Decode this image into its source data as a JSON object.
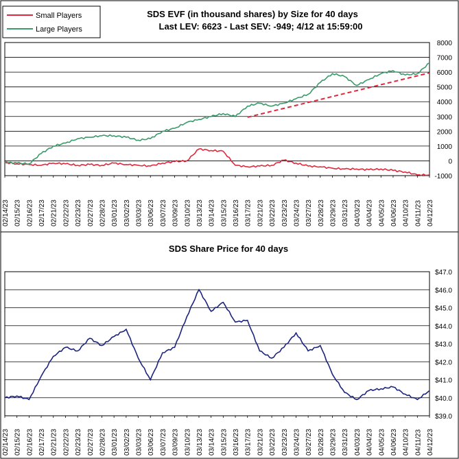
{
  "dates": [
    "02/14/23",
    "02/15/23",
    "02/16/23",
    "02/17/23",
    "02/21/23",
    "02/22/23",
    "02/23/23",
    "02/27/23",
    "02/28/23",
    "03/01/23",
    "03/02/23",
    "03/03/23",
    "03/06/23",
    "03/07/23",
    "03/09/23",
    "03/10/23",
    "03/13/23",
    "03/14/23",
    "03/15/23",
    "03/16/23",
    "03/17/23",
    "03/21/23",
    "03/22/23",
    "03/23/23",
    "03/24/23",
    "03/27/23",
    "03/28/23",
    "03/29/23",
    "03/31/23",
    "04/03/23",
    "04/04/23",
    "04/05/23",
    "04/06/23",
    "04/10/23",
    "04/11/23",
    "04/12/23"
  ],
  "chart_data": [
    {
      "type": "line",
      "title": "SDS EVF (in thousand shares) by Size for 40 days",
      "subtitle": "Last LEV: 6623 - Last SEV: -949; 4/12 at 15:59:00",
      "y_ticks": [
        "8000",
        "7000",
        "6000",
        "5000",
        "4000",
        "3000",
        "2000",
        "1000",
        "0",
        "-1000"
      ],
      "ylim": [
        -1000,
        8000
      ],
      "grid": true,
      "legend": "top-left",
      "series": [
        {
          "name": "Small Players",
          "color": "#e0283c",
          "values": [
            -100,
            -200,
            -250,
            -300,
            -150,
            -200,
            -300,
            -250,
            -300,
            -150,
            -250,
            -300,
            -350,
            -150,
            -50,
            0,
            800,
            700,
            650,
            -300,
            -400,
            -350,
            -300,
            50,
            -150,
            -350,
            -400,
            -500,
            -550,
            -550,
            -600,
            -550,
            -650,
            -750,
            -950,
            -949
          ]
        },
        {
          "name": "Large Players",
          "color": "#3a9a6a",
          "values": [
            -100,
            -150,
            -200,
            500,
            1000,
            1200,
            1500,
            1600,
            1700,
            1700,
            1600,
            1400,
            1500,
            2000,
            2200,
            2600,
            2800,
            3000,
            3200,
            3000,
            3700,
            3900,
            3700,
            3900,
            4200,
            4500,
            5300,
            5900,
            5700,
            5100,
            5500,
            5900,
            6100,
            5800,
            5900,
            6623
          ]
        }
      ],
      "trendline": {
        "color": "#e0283c",
        "x_start": "03/17/23",
        "y_start": 2950,
        "x_end": "04/12/23",
        "y_end": 5950,
        "style": "dashed"
      }
    },
    {
      "type": "line",
      "title": "SDS Share Price for 40 days",
      "y_ticks": [
        "$47.0",
        "$46.0",
        "$45.0",
        "$44.0",
        "$43.0",
        "$42.0",
        "$41.0",
        "$40.0",
        "$39.0"
      ],
      "ylim": [
        39.0,
        47.0
      ],
      "grid": true,
      "series": [
        {
          "color": "#1a237e",
          "values": [
            40.0,
            40.1,
            39.9,
            41.2,
            42.3,
            42.8,
            42.6,
            43.3,
            42.9,
            43.4,
            43.8,
            42.2,
            41.0,
            42.5,
            42.8,
            44.5,
            46.0,
            44.8,
            45.3,
            44.2,
            44.3,
            42.6,
            42.2,
            42.8,
            43.6,
            42.6,
            42.9,
            41.3,
            40.3,
            39.9,
            40.4,
            40.5,
            40.6,
            40.2,
            39.9,
            40.4
          ]
        }
      ]
    }
  ]
}
